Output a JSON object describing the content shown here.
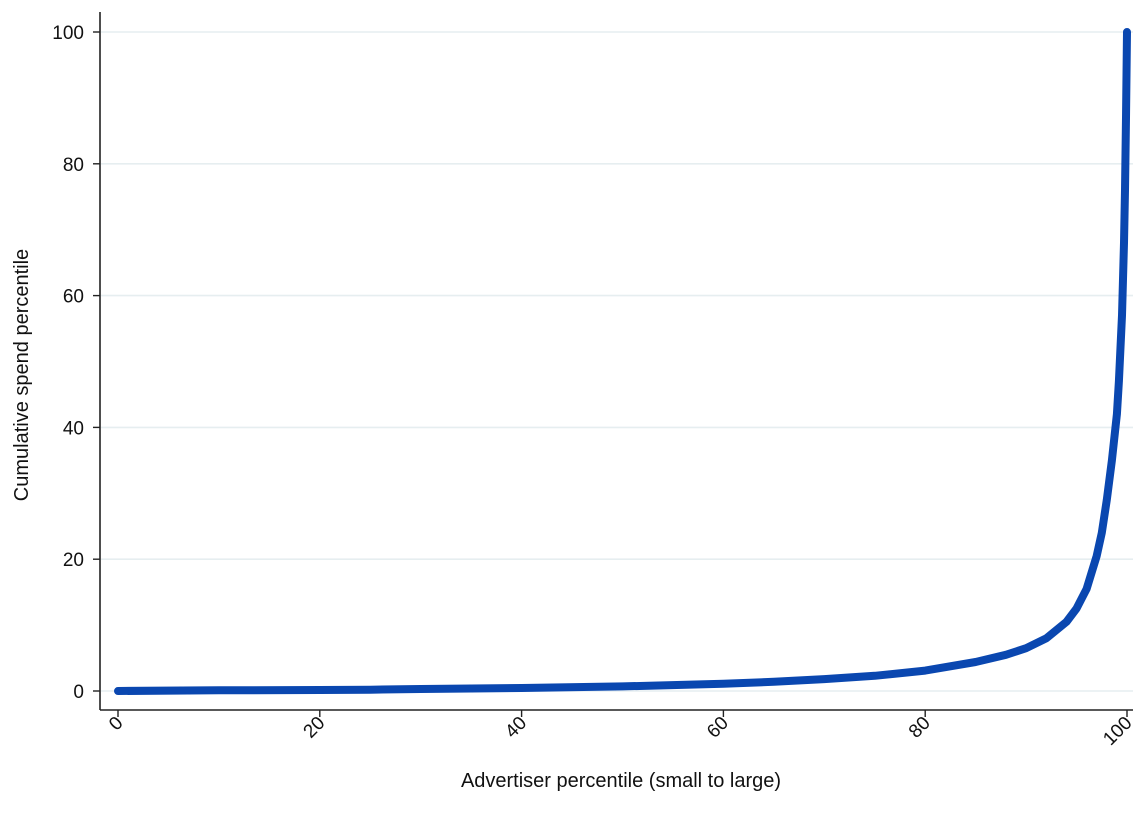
{
  "chart_data": {
    "type": "line",
    "title": "",
    "xlabel": "Advertiser percentile (small to large)",
    "ylabel": "Cumulative spend percentile",
    "xlim": [
      0,
      100
    ],
    "ylim": [
      0,
      100
    ],
    "x_ticks": [
      0,
      20,
      40,
      60,
      80,
      100
    ],
    "y_ticks": [
      0,
      20,
      40,
      60,
      80,
      100
    ],
    "x_tick_labels": [
      "0",
      "20",
      "40",
      "60",
      "80",
      "100"
    ],
    "y_tick_labels": [
      "0",
      "20",
      "40",
      "60",
      "80",
      "100"
    ],
    "x_tick_rotation_deg": 45,
    "grid": "horizontal",
    "legend": "none",
    "series": [
      {
        "color": "#0a47b0",
        "x": [
          0,
          10,
          20,
          25,
          30,
          40,
          50,
          60,
          65,
          70,
          75,
          80,
          85,
          88,
          90,
          92,
          94,
          95,
          96,
          97,
          97.5,
          98,
          98.5,
          99,
          99.2,
          99.5,
          99.7,
          99.8,
          99.9,
          100
        ],
        "y": [
          0,
          0.1,
          0.15,
          0.2,
          0.3,
          0.45,
          0.7,
          1.1,
          1.4,
          1.8,
          2.3,
          3.1,
          4.4,
          5.5,
          6.5,
          8.0,
          10.5,
          12.5,
          15.5,
          20.5,
          24,
          29,
          35,
          42,
          47,
          57,
          68,
          76,
          87,
          100
        ]
      }
    ]
  }
}
